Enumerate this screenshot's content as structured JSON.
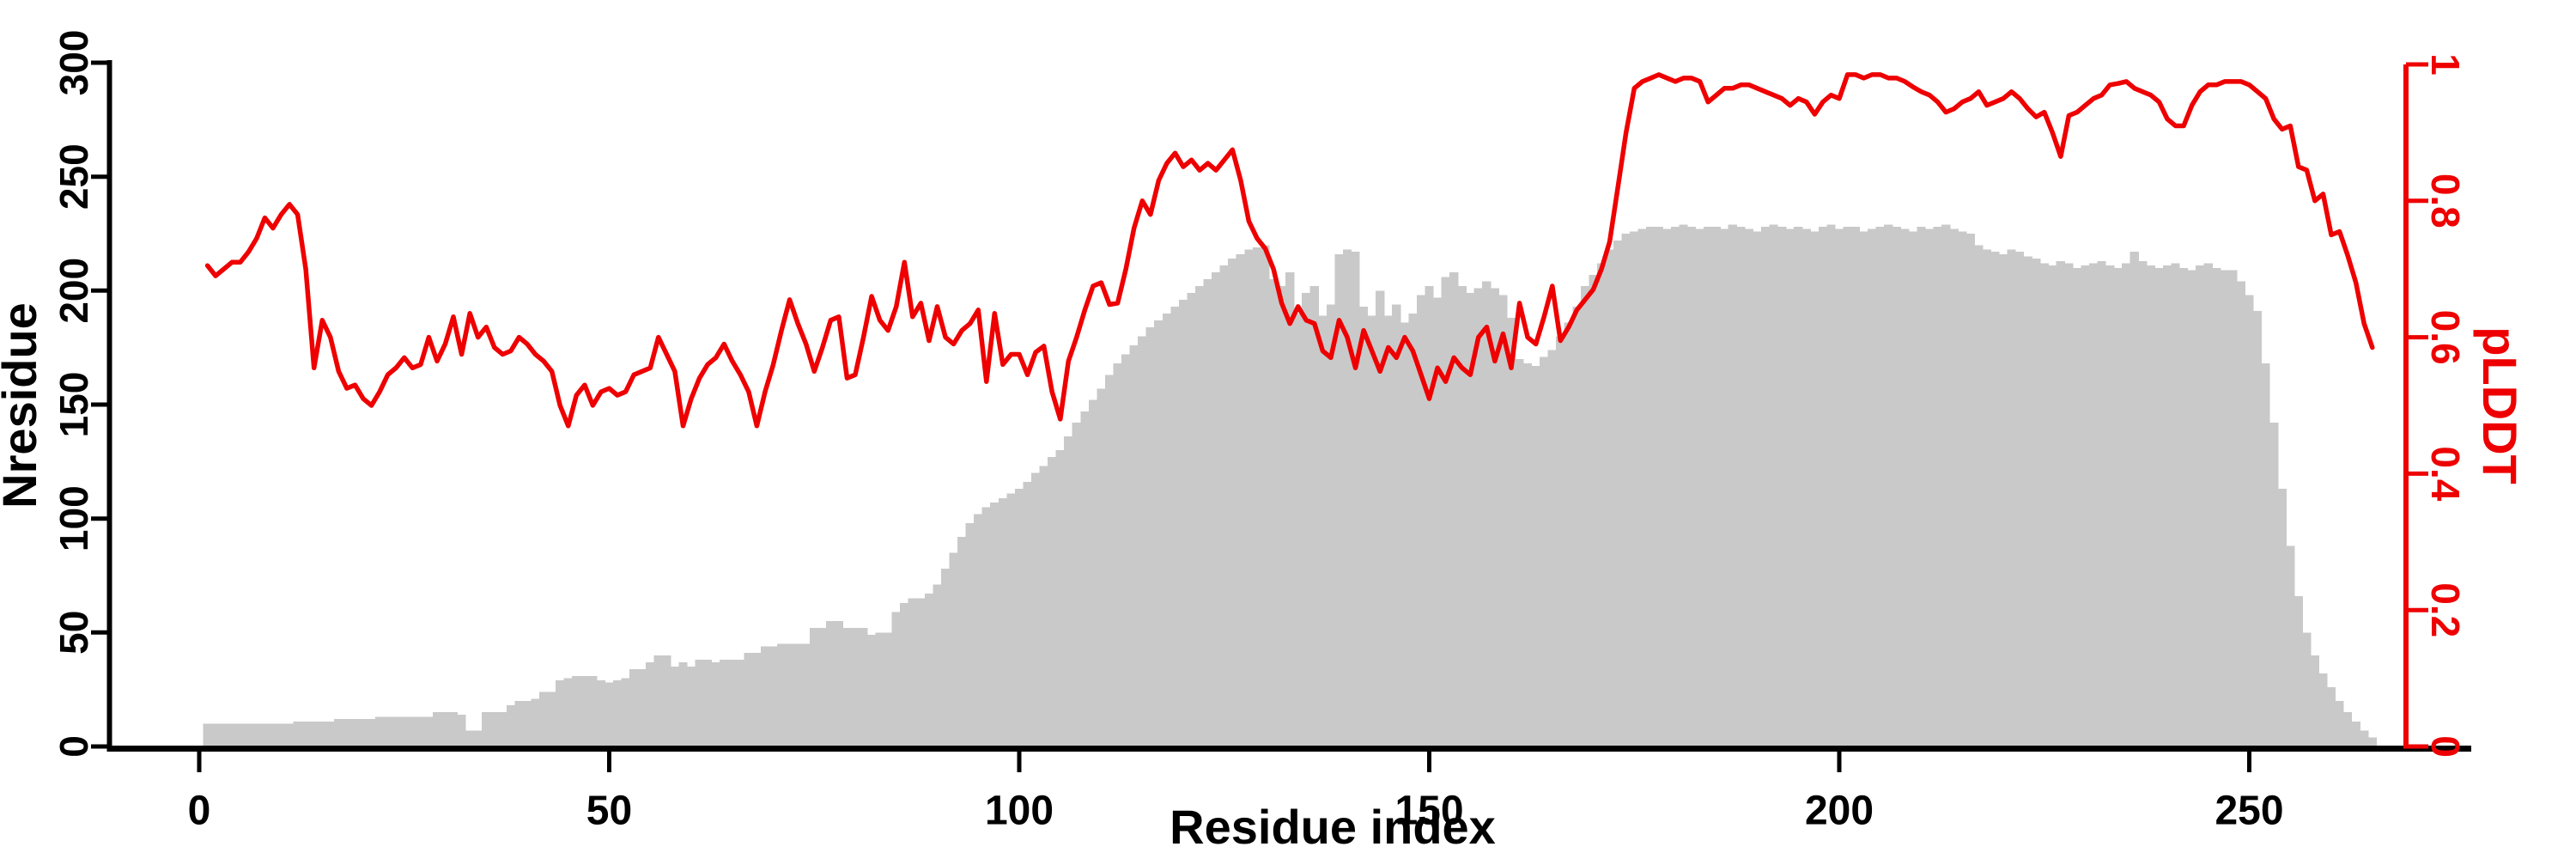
{
  "chart": {
    "background": "#ffffff",
    "bar_color": "#c9c9c9",
    "line_color": "#ee0000",
    "axis_color": "#000000",
    "left_axis": {
      "label": "Nresidue",
      "color": "#000000",
      "ticks": [
        0,
        50,
        100,
        150,
        200,
        250,
        300
      ],
      "tick_labels": [
        "0",
        "50",
        "100",
        "150",
        "200",
        "250",
        "300"
      ],
      "range": [
        0,
        300
      ]
    },
    "bottom_axis": {
      "label": "Residue index",
      "color": "#000000",
      "ticks": [
        0,
        50,
        100,
        150,
        200,
        250
      ],
      "tick_labels": [
        "0",
        "50",
        "100",
        "150",
        "200",
        "250"
      ],
      "range": [
        0,
        250
      ]
    },
    "right_axis": {
      "label": "pLDDT",
      "color": "#ee0000",
      "ticks": [
        0,
        0.2,
        0.4,
        0.6,
        0.8,
        1
      ],
      "tick_labels": [
        "0",
        "0.2",
        "0.4",
        "0.6",
        "0.8",
        "1"
      ],
      "range": [
        0,
        1
      ]
    }
  },
  "chart_data": {
    "type": "bar+line",
    "title": "",
    "xlabel": "Residue index",
    "x_start": 1,
    "x_step": 1,
    "x_ticks": [
      0,
      50,
      100,
      150,
      200,
      250
    ],
    "left_ylabel": "Nresidue",
    "left_ylim": [
      0,
      300
    ],
    "right_ylabel": "pLDDT",
    "right_ylim": [
      0,
      1
    ],
    "grid": false,
    "legend": "none",
    "series": [
      {
        "name": "Nresidue",
        "type": "bar",
        "axis": "left",
        "color": "#c9c9c9",
        "values": [
          10,
          10,
          10,
          10,
          10,
          10,
          10,
          10,
          10,
          10,
          10,
          11,
          11,
          11,
          11,
          11,
          12,
          12,
          12,
          12,
          12,
          13,
          13,
          13,
          13,
          13,
          13,
          13,
          15,
          15,
          15,
          14,
          7,
          7,
          15,
          15,
          15,
          18,
          20,
          20,
          21,
          24,
          24,
          29,
          30,
          31,
          31,
          31,
          29,
          28,
          29,
          30,
          34,
          34,
          37,
          40,
          40,
          35,
          37,
          35,
          38,
          38,
          37,
          38,
          38,
          38,
          41,
          41,
          44,
          44,
          45,
          45,
          45,
          45,
          52,
          52,
          55,
          55,
          52,
          52,
          52,
          49,
          50,
          50,
          59,
          63,
          65,
          65,
          67,
          71,
          78,
          85,
          92,
          98,
          102,
          105,
          107,
          109,
          111,
          113,
          116,
          120,
          123,
          127,
          130,
          136,
          142,
          147,
          152,
          157,
          163,
          168,
          172,
          176,
          180,
          184,
          187,
          190,
          193,
          196,
          199,
          202,
          205,
          208,
          211,
          214,
          216,
          218,
          219,
          220,
          205,
          202,
          208,
          190,
          199,
          202,
          189,
          194,
          216,
          218,
          217,
          193,
          189,
          200,
          189,
          194,
          186,
          190,
          198,
          202,
          197,
          206,
          208,
          202,
          199,
          201,
          204,
          201,
          198,
          188,
          170,
          168,
          167,
          171,
          174,
          180,
          186,
          193,
          202,
          207,
          212,
          218,
          222,
          225,
          226,
          227,
          228,
          228,
          227,
          228,
          229,
          228,
          227,
          228,
          228,
          227,
          229,
          228,
          227,
          226,
          228,
          229,
          228,
          227,
          228,
          227,
          226,
          228,
          229,
          227,
          228,
          228,
          226,
          227,
          228,
          229,
          228,
          227,
          226,
          228,
          227,
          228,
          229,
          227,
          226,
          225,
          220,
          218,
          217,
          216,
          218,
          217,
          215,
          214,
          212,
          211,
          213,
          212,
          210,
          211,
          212,
          213,
          211,
          210,
          212,
          217,
          213,
          211,
          210,
          211,
          212,
          210,
          209,
          211,
          212,
          210,
          209,
          209,
          204,
          198,
          191,
          168,
          142,
          113,
          88,
          66,
          50,
          40,
          32,
          26,
          20,
          15,
          11,
          7,
          4
        ]
      },
      {
        "name": "pLDDT",
        "type": "line",
        "axis": "right",
        "color": "#ee0000",
        "values": [
          0.705,
          0.69,
          0.7,
          0.71,
          0.71,
          0.725,
          0.745,
          0.775,
          0.76,
          0.78,
          0.795,
          0.78,
          0.7,
          0.555,
          0.625,
          0.6,
          0.55,
          0.525,
          0.53,
          0.51,
          0.5,
          0.52,
          0.545,
          0.555,
          0.57,
          0.555,
          0.56,
          0.6,
          0.565,
          0.59,
          0.63,
          0.575,
          0.635,
          0.6,
          0.615,
          0.585,
          0.575,
          0.58,
          0.6,
          0.59,
          0.575,
          0.565,
          0.55,
          0.5,
          0.47,
          0.515,
          0.53,
          0.5,
          0.52,
          0.525,
          0.515,
          0.52,
          0.545,
          0.55,
          0.555,
          0.6,
          0.575,
          0.55,
          0.47,
          0.51,
          0.54,
          0.56,
          0.57,
          0.59,
          0.565,
          0.545,
          0.52,
          0.47,
          0.52,
          0.56,
          0.61,
          0.655,
          0.62,
          0.59,
          0.55,
          0.585,
          0.625,
          0.63,
          0.54,
          0.545,
          0.6,
          0.66,
          0.625,
          0.61,
          0.645,
          0.71,
          0.63,
          0.65,
          0.595,
          0.645,
          0.6,
          0.59,
          0.61,
          0.62,
          0.64,
          0.535,
          0.635,
          0.56,
          0.575,
          0.575,
          0.545,
          0.578,
          0.587,
          0.52,
          0.48,
          0.565,
          0.6,
          0.64,
          0.675,
          0.68,
          0.648,
          0.65,
          0.7,
          0.76,
          0.8,
          0.78,
          0.83,
          0.855,
          0.87,
          0.85,
          0.86,
          0.845,
          0.855,
          0.845,
          0.86,
          0.875,
          0.83,
          0.77,
          0.745,
          0.73,
          0.7,
          0.65,
          0.62,
          0.645,
          0.625,
          0.62,
          0.58,
          0.57,
          0.625,
          0.6,
          0.555,
          0.61,
          0.58,
          0.55,
          0.585,
          0.57,
          0.6,
          0.58,
          0.545,
          0.51,
          0.555,
          0.535,
          0.57,
          0.555,
          0.545,
          0.6,
          0.615,
          0.565,
          0.605,
          0.555,
          0.65,
          0.6,
          0.59,
          0.63,
          0.675,
          0.595,
          0.615,
          0.64,
          0.655,
          0.67,
          0.7,
          0.74,
          0.82,
          0.9,
          0.965,
          0.975,
          0.98,
          0.985,
          0.98,
          0.975,
          0.98,
          0.98,
          0.975,
          0.945,
          0.955,
          0.965,
          0.965,
          0.97,
          0.97,
          0.965,
          0.96,
          0.955,
          0.95,
          0.94,
          0.95,
          0.945,
          0.927,
          0.945,
          0.955,
          0.95,
          0.985,
          0.985,
          0.98,
          0.985,
          0.985,
          0.98,
          0.98,
          0.975,
          0.967,
          0.96,
          0.955,
          0.945,
          0.93,
          0.935,
          0.945,
          0.95,
          0.96,
          0.94,
          0.945,
          0.95,
          0.96,
          0.95,
          0.935,
          0.923,
          0.93,
          0.9,
          0.865,
          0.925,
          0.93,
          0.94,
          0.95,
          0.955,
          0.97,
          0.972,
          0.975,
          0.965,
          0.96,
          0.955,
          0.945,
          0.92,
          0.91,
          0.91,
          0.94,
          0.96,
          0.97,
          0.97,
          0.975,
          0.975,
          0.975,
          0.97,
          0.96,
          0.95,
          0.92,
          0.905,
          0.91,
          0.85,
          0.845,
          0.8,
          0.81,
          0.75,
          0.755,
          0.72,
          0.68,
          0.62,
          0.585
        ]
      }
    ]
  }
}
